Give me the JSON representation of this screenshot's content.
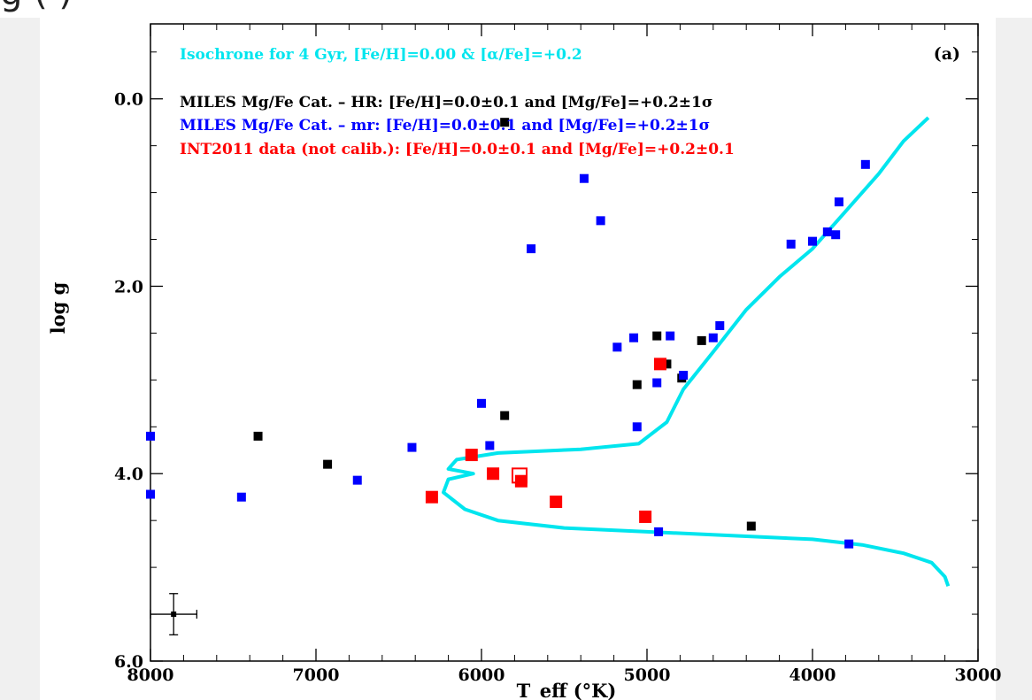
{
  "caption_fragment": "g                                    (                         )",
  "chart_data": {
    "type": "scatter",
    "panel_label": "(a)",
    "xlabel": "T_eff (°K)",
    "ylabel": "log g",
    "xlim": [
      8000,
      3000
    ],
    "ylim": [
      6.0,
      -0.8
    ],
    "x_reversed": true,
    "y_reversed": true,
    "xticks": [
      8000,
      7000,
      6000,
      5000,
      4000,
      3000
    ],
    "yticks": [
      0.0,
      2.0,
      4.0,
      6.0
    ],
    "x_tick_labels": [
      "8000",
      "7000",
      "6000",
      "5000",
      "4000",
      "3000"
    ],
    "y_tick_labels": [
      "0.0",
      "2.0",
      "4.0",
      "6.0"
    ],
    "legend": [
      {
        "text": "Isochrone for 4 Gyr, [Fe/H]=0.00 & [α/Fe]=+0.2",
        "color": "#00e5ee"
      },
      {
        "text": "MILES Mg/Fe Cat. – HR: [Fe/H]=0.0±0.1 and [Mg/Fe]=+0.2±1σ",
        "color": "#000000"
      },
      {
        "text": "MILES Mg/Fe Cat. – mr: [Fe/H]=0.0±0.1 and [Mg/Fe]=+0.2±1σ",
        "color": "#0000ff"
      },
      {
        "text": "INT2011 data (not calib.): [Fe/H]=0.0±0.1 and [Mg/Fe]=+0.2±0.1",
        "color": "#ff0000"
      }
    ],
    "isochrone": {
      "color": "#00e5ee",
      "points": [
        [
          3180,
          5.2
        ],
        [
          3200,
          5.1
        ],
        [
          3280,
          4.95
        ],
        [
          3450,
          4.85
        ],
        [
          3700,
          4.76
        ],
        [
          4000,
          4.7
        ],
        [
          4500,
          4.66
        ],
        [
          5000,
          4.62
        ],
        [
          5500,
          4.58
        ],
        [
          5900,
          4.5
        ],
        [
          6100,
          4.38
        ],
        [
          6230,
          4.2
        ],
        [
          6200,
          4.06
        ],
        [
          6050,
          4.0
        ],
        [
          6200,
          3.95
        ],
        [
          6150,
          3.85
        ],
        [
          5900,
          3.78
        ],
        [
          5400,
          3.74
        ],
        [
          5050,
          3.68
        ],
        [
          4880,
          3.45
        ],
        [
          4780,
          3.1
        ],
        [
          4600,
          2.7
        ],
        [
          4400,
          2.25
        ],
        [
          4200,
          1.9
        ],
        [
          4000,
          1.6
        ],
        [
          3800,
          1.2
        ],
        [
          3600,
          0.8
        ],
        [
          3450,
          0.45
        ],
        [
          3300,
          0.2
        ]
      ]
    },
    "series": [
      {
        "name": "MILES Mg/Fe Cat. – HR",
        "color": "#000000",
        "points": [
          [
            5860,
            0.25
          ],
          [
            7350,
            3.6
          ],
          [
            6930,
            3.9
          ],
          [
            5860,
            3.38
          ],
          [
            5060,
            3.05
          ],
          [
            4940,
            2.53
          ],
          [
            4880,
            2.83
          ],
          [
            4670,
            2.58
          ],
          [
            4790,
            2.98
          ],
          [
            4370,
            4.56
          ]
        ]
      },
      {
        "name": "MILES Mg/Fe Cat. – mr",
        "color": "#0000ff",
        "points": [
          [
            8000,
            3.6
          ],
          [
            8000,
            4.22
          ],
          [
            7450,
            4.25
          ],
          [
            6750,
            4.07
          ],
          [
            6420,
            3.72
          ],
          [
            6000,
            3.25
          ],
          [
            5950,
            3.7
          ],
          [
            5700,
            1.6
          ],
          [
            5380,
            0.85
          ],
          [
            5280,
            1.3
          ],
          [
            5180,
            2.65
          ],
          [
            5080,
            2.55
          ],
          [
            5060,
            3.5
          ],
          [
            4940,
            3.03
          ],
          [
            4930,
            4.62
          ],
          [
            4860,
            2.53
          ],
          [
            4780,
            2.95
          ],
          [
            4600,
            2.55
          ],
          [
            4560,
            2.42
          ],
          [
            4130,
            1.55
          ],
          [
            4000,
            1.52
          ],
          [
            3910,
            1.42
          ],
          [
            3860,
            1.45
          ],
          [
            3840,
            1.1
          ],
          [
            3780,
            4.75
          ],
          [
            3680,
            0.7
          ]
        ]
      },
      {
        "name": "INT2011 data (not calib.)",
        "color": "#ff0000",
        "points": [
          [
            6060,
            3.8
          ],
          [
            5930,
            4.0
          ],
          [
            6300,
            4.25
          ],
          [
            5760,
            4.08
          ],
          [
            5550,
            4.3
          ],
          [
            5010,
            4.46
          ],
          [
            4920,
            2.83
          ]
        ],
        "open_points": [
          [
            5770,
            4.02
          ]
        ]
      }
    ],
    "error_bar": {
      "x": 7860,
      "y": 5.5,
      "x_err": 140,
      "y_err": 0.22
    }
  }
}
